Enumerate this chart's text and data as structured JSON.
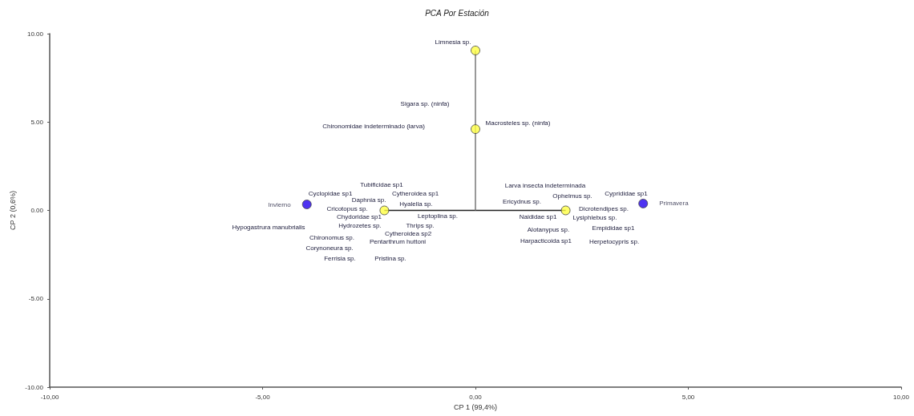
{
  "chart_data": {
    "type": "scatter",
    "title": "PCA Por Estación",
    "xlabel": "CP 1 (99,4%)",
    "ylabel": "CP 2 (0,6%)",
    "xlim": [
      -10,
      10
    ],
    "xticks": [
      {
        "value": -10,
        "label": "-10,00"
      },
      {
        "value": -5,
        "label": "-5,00"
      },
      {
        "value": 0,
        "label": "0,00"
      },
      {
        "value": 5,
        "label": "5,00"
      },
      {
        "value": 10,
        "label": "10,00"
      }
    ],
    "ylim": [
      -10,
      10
    ],
    "yticks": [
      {
        "value": -10,
        "label": "-10.00"
      },
      {
        "value": -5,
        "label": "-5.00"
      },
      {
        "value": 0,
        "label": "0.00"
      },
      {
        "value": 5,
        "label": "5.00"
      },
      {
        "value": 10,
        "label": "10.00"
      }
    ],
    "grid": false,
    "marker": "circle",
    "series": [
      {
        "type": "line",
        "marker": "none",
        "line_style": "solid",
        "color": "#222222",
        "x": [
          -2.14,
          2.12
        ],
        "values": [
          0,
          0
        ]
      },
      {
        "type": "line",
        "marker": "none",
        "line_style": "solid",
        "color": "#777777",
        "x": [
          0,
          0
        ],
        "values": [
          0,
          9.05
        ]
      },
      {
        "color": "#ffff44",
        "x": [
          -2.14,
          2.12,
          0,
          0
        ],
        "values": [
          0,
          0,
          4.6,
          9.05
        ]
      },
      {
        "color": "#2200ee",
        "x": [
          -3.96,
          3.94
        ],
        "values": [
          0.34,
          0.39
        ],
        "value_labels": [
          "Invierno",
          "Primavera"
        ]
      }
    ],
    "annotations": [
      "Limnesia sp.",
      "Sigara sp. (ninfa)",
      "Chironomidae indeterminado (larva)",
      "Macrosteles sp. (ninfa)",
      "Tubificidae sp1",
      "Cyclopidae sp1",
      "Cytheroidea sp1",
      "Daphnia sp.",
      "Hyalella sp.",
      "Cricotopus sp.",
      "Chydoridae sp1",
      "Leptoplina sp.",
      "Hypogastrura manubrialis",
      "Hydrozetes sp.",
      "Thrips sp.",
      "Cytheroidea sp2",
      "Chironomus sp.",
      "Pentarthrum huttoni",
      "Corynoneura sp.",
      "Ferrisia sp.",
      "Pristina sp.",
      "Larva insecta indeterminada",
      "Ophelmus sp.",
      "Cyprididae sp1",
      "Ericydnus sp.",
      "Dicrotendipes sp.",
      "Naididae sp1",
      "Lysiphlebus sp.",
      "Alotanypus sp.",
      "Empididae sp1",
      "Harpacticoida sp1",
      "Herpetocypris sp."
    ]
  }
}
